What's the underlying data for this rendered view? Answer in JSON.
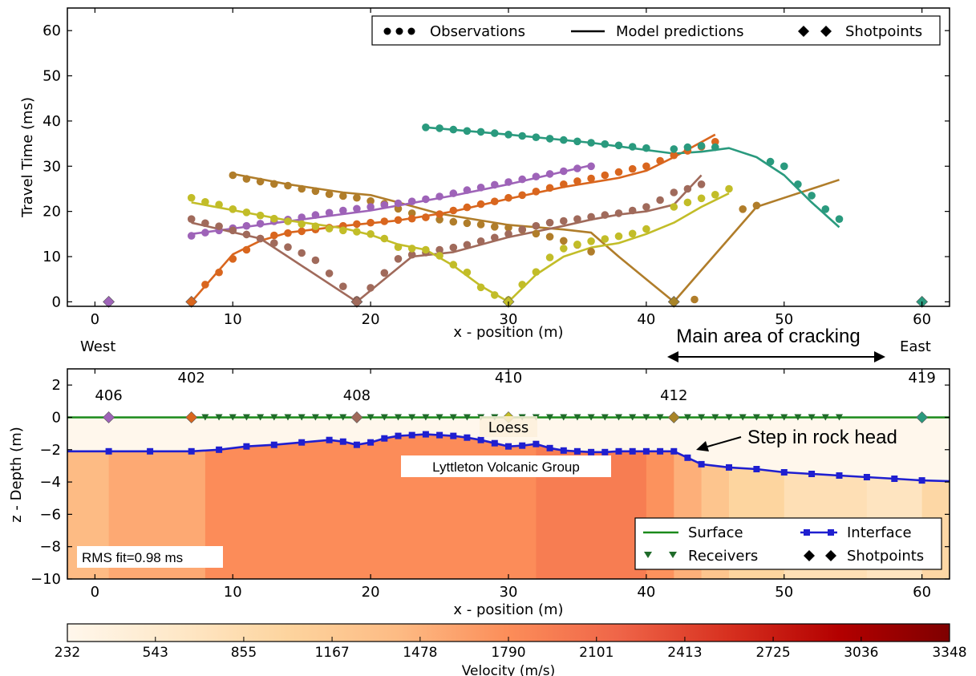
{
  "chart_data": [
    {
      "type": "line",
      "name": "travel-time-panel",
      "xlabel": "x - position (m)",
      "ylabel": "Travel Time (ms)",
      "xlim": [
        -2,
        62
      ],
      "ylim": [
        -1,
        65
      ],
      "xticks": [
        "0",
        "10",
        "20",
        "30",
        "40",
        "50",
        "60"
      ],
      "yticks": [
        "0",
        "10",
        "20",
        "30",
        "40",
        "50",
        "60"
      ],
      "legend": {
        "placement": "top-right",
        "entries": [
          "Observations",
          "Model predictions",
          "Shotpoints"
        ]
      },
      "shotpoints": [
        {
          "x": 1,
          "y": 0,
          "color": "#9e63b8"
        },
        {
          "x": 7,
          "y": 0,
          "color": "#d9661e"
        },
        {
          "x": 19,
          "y": 0,
          "color": "#a06a5b"
        },
        {
          "x": 30,
          "y": 0,
          "color": "#c2bd28"
        },
        {
          "x": 42,
          "y": 0,
          "color": "#a88428"
        },
        {
          "x": 60,
          "y": 0,
          "color": "#2a9a7e"
        }
      ],
      "series": [
        {
          "color": "#b07d2a",
          "observations": {
            "x": [
              10,
              11,
              12,
              13,
              14,
              15,
              16,
              17,
              18,
              19,
              20,
              21,
              22,
              23,
              24,
              25,
              26,
              27,
              28,
              29,
              30,
              31,
              32,
              33,
              34,
              35,
              36,
              37,
              38,
              39,
              40,
              41,
              42,
              43,
              44,
              45,
              46,
              47,
              48,
              49,
              50,
              51,
              52,
              53,
              54
            ],
            "y": [
              28,
              27.2,
              26.6,
              26.1,
              25.7,
              25,
              24.5,
              23.8,
              23.4,
              23,
              22.3,
              21.7,
              20.6,
              19.6,
              18.7,
              18.2,
              17.7,
              17.4,
              17.1,
              16.6,
              16.4,
              15.9,
              15.1,
              14.4,
              13.5,
              12.6,
              11.1,
              null,
              null,
              null,
              null,
              null,
              null,
              null,
              null,
              null,
              null,
              null,
              null,
              null,
              null,
              null,
              null,
              null,
              null
            ]
          },
          "obs_extra": {
            "x": [
              43.5,
              47,
              48,
              51,
              52,
              53,
              54
            ],
            "y": [
              0.5,
              20.5,
              21.3,
              null,
              null,
              null,
              null
            ]
          },
          "model": {
            "x": [
              10,
              14,
              18,
              20,
              22,
              25,
              30,
              34,
              36,
              38,
              40,
              42,
              44,
              46,
              48,
              50,
              52,
              54
            ],
            "y": [
              28.3,
              26,
              24.2,
              23.6,
              22,
              19.5,
              17,
              16,
              15.3,
              10,
              5,
              0,
              7,
              14,
              21,
              23,
              25,
              27
            ]
          }
        },
        {
          "color": "#d9661e",
          "observations": {
            "x": [
              7,
              8,
              9,
              10,
              11,
              12,
              13,
              14,
              15,
              16,
              17,
              18,
              19,
              20,
              21,
              22,
              23,
              24,
              25,
              26,
              27,
              28,
              29,
              30,
              31,
              32,
              33,
              34,
              35,
              36,
              37,
              38,
              39,
              40,
              41,
              42,
              43,
              44,
              45
            ],
            "y": [
              0,
              3.8,
              6.5,
              9.5,
              11.5,
              14,
              14.7,
              15.2,
              15.6,
              16,
              16.4,
              16.8,
              17.2,
              17.5,
              17.8,
              18.1,
              18.4,
              18.7,
              19.4,
              20.2,
              20.9,
              21.6,
              22.2,
              23,
              23.6,
              24.4,
              25.2,
              26,
              26.7,
              27.3,
              28,
              28.7,
              29.4,
              30,
              31.2,
              32.4,
              33.4,
              34.3,
              35.4
            ]
          },
          "model": {
            "x": [
              7,
              10,
              12,
              14,
              18,
              22,
              26,
              30,
              34,
              38,
              40,
              42,
              45
            ],
            "y": [
              0,
              10.5,
              13.5,
              15.3,
              16.8,
              18,
              20,
              22.8,
              25.4,
              27.4,
              29,
              32,
              37
            ]
          }
        },
        {
          "color": "#9e63b8",
          "observations": {
            "x": [
              7,
              8,
              9,
              10,
              11,
              12,
              13,
              14,
              15,
              16,
              17,
              18,
              19,
              20,
              21,
              22,
              23,
              24,
              25,
              26,
              27,
              28,
              29,
              30,
              31,
              32,
              33,
              34,
              35,
              36
            ],
            "y": [
              14.6,
              15.3,
              15.8,
              16.3,
              16.8,
              17.3,
              17.8,
              18.2,
              18.7,
              19.2,
              19.7,
              20.2,
              20.6,
              21,
              21.4,
              21.8,
              22.2,
              22.7,
              23.3,
              24,
              24.7,
              25.3,
              25.9,
              26.5,
              27.1,
              27.7,
              28.3,
              28.9,
              29.5,
              30
            ]
          },
          "model": {
            "x": [
              7,
              12,
              20,
              26,
              30,
              36
            ],
            "y": [
              15,
              17,
              20.2,
              23.5,
              26,
              30.2
            ]
          }
        },
        {
          "color": "#a06a5b",
          "observations": {
            "x": [
              7,
              8,
              9,
              10,
              11,
              12,
              13,
              14,
              15,
              16,
              17,
              18,
              19,
              20,
              21,
              22,
              23,
              24,
              25,
              26,
              27,
              28,
              29,
              30,
              31,
              32,
              33,
              34,
              35,
              36,
              37,
              38,
              39,
              40,
              41,
              42,
              43,
              44
            ],
            "y": [
              18.3,
              17.4,
              16.7,
              15.8,
              14.9,
              14,
              13,
              12.1,
              10.8,
              9.2,
              6.3,
              3.4,
              0.4,
              3.1,
              6.4,
              9.5,
              10.4,
              10.9,
              11.5,
              12,
              12.6,
              13.4,
              14.2,
              15,
              16,
              16.8,
              17.5,
              17.9,
              18.3,
              18.8,
              19.2,
              19.6,
              20.2,
              21,
              22.5,
              24.2,
              25,
              26
            ]
          },
          "model": {
            "x": [
              7,
              12,
              19,
              23,
              26,
              30,
              34,
              36,
              38,
              40,
              42,
              44
            ],
            "y": [
              17.5,
              14,
              0,
              10,
              11,
              14.3,
              16.8,
              18.2,
              19.3,
              20,
              21.5,
              28
            ]
          }
        },
        {
          "color": "#c2bd28",
          "observations": {
            "x": [
              7,
              8,
              9,
              10,
              11,
              12,
              13,
              14,
              15,
              16,
              17,
              18,
              19,
              20,
              21,
              22,
              23,
              24,
              25,
              26,
              27,
              28,
              29,
              30,
              31,
              32,
              33,
              34,
              35,
              36,
              37,
              38,
              39,
              40,
              41,
              42,
              43,
              44,
              45,
              46
            ],
            "y": [
              23,
              22.1,
              21.5,
              20.5,
              19.8,
              19.1,
              18.4,
              17.8,
              17.2,
              16.7,
              16.2,
              15.8,
              15.5,
              15,
              14,
              12.1,
              11.8,
              11.5,
              10.2,
              8.2,
              6.5,
              3.2,
              1.5,
              0.4,
              3.8,
              6.6,
              9.8,
              11.8,
              12.7,
              13.4,
              13.9,
              14.5,
              15.1,
              16.1,
              null,
              21,
              22,
              22.9,
              23.7,
              25
            ]
          },
          "model": {
            "x": [
              7,
              14,
              18,
              20,
              22,
              24,
              26,
              28,
              30,
              32,
              34,
              36,
              38,
              40,
              42,
              44,
              46
            ],
            "y": [
              22,
              18,
              16.3,
              14.8,
              12.7,
              11.5,
              8,
              3.5,
              0,
              6,
              10,
              12,
              13,
              15,
              17.5,
              21,
              24
            ]
          }
        },
        {
          "color": "#2a9a7e",
          "observations": {
            "x": [
              24,
              25,
              26,
              27,
              28,
              29,
              30,
              31,
              32,
              33,
              34,
              35,
              36,
              37,
              38,
              39,
              40,
              41,
              42,
              43,
              44,
              45,
              46,
              47,
              48,
              49,
              50,
              51,
              52,
              53,
              54
            ],
            "y": [
              38.6,
              38.4,
              38.1,
              37.8,
              37.6,
              37.3,
              37,
              36.7,
              36.4,
              36.1,
              35.8,
              35.5,
              35.2,
              34.9,
              34.6,
              34.3,
              34,
              null,
              33.8,
              34.2,
              34.5,
              34.2,
              null,
              null,
              null,
              31,
              30,
              26,
              23.5,
              20.5,
              18.3
            ]
          },
          "model": {
            "x": [
              24,
              30,
              36,
              42,
              44,
              46,
              48,
              50,
              52,
              54
            ],
            "y": [
              38.6,
              37,
              35.2,
              32.8,
              33.2,
              34,
              32,
              28,
              22,
              16.5
            ]
          }
        }
      ]
    },
    {
      "type": "area",
      "name": "velocity-depth-panel",
      "xlabel": "x - position (m)",
      "ylabel": "z - Depth (m)",
      "xlim": [
        -2,
        62
      ],
      "ylim": [
        -10,
        3
      ],
      "xticks": [
        "0",
        "10",
        "20",
        "30",
        "40",
        "50",
        "60"
      ],
      "yticks": [
        "2",
        "0",
        "−2",
        "−4",
        "−6",
        "−8",
        "−10"
      ],
      "legend": {
        "placement": "lower-right",
        "entries": [
          "Surface",
          "Interface",
          "Receivers",
          "Shotpoints"
        ]
      },
      "surface_depth": 0,
      "interface": {
        "x": [
          -2,
          1,
          4,
          7,
          9,
          11,
          13,
          15,
          17,
          18,
          19,
          20,
          21,
          22,
          23,
          24,
          25,
          26,
          27,
          28,
          29,
          30,
          31,
          32,
          33,
          34,
          35,
          36,
          37,
          38,
          39,
          40,
          41,
          42,
          43,
          44,
          46,
          48,
          50,
          52,
          54,
          56,
          58,
          60,
          62
        ],
        "y": [
          -2.1,
          -2.1,
          -2.1,
          -2.1,
          -2,
          -1.8,
          -1.7,
          -1.55,
          -1.4,
          -1.5,
          -1.7,
          -1.55,
          -1.3,
          -1.15,
          -1.1,
          -1.05,
          -1.1,
          -1.15,
          -1.25,
          -1.4,
          -1.6,
          -1.8,
          -1.75,
          -1.65,
          -1.9,
          -2.05,
          -2.1,
          -2.15,
          -2.15,
          -2.1,
          -2.1,
          -2.1,
          -2.1,
          -2.1,
          -2.5,
          -2.9,
          -3.1,
          -3.2,
          -3.4,
          -3.5,
          -3.6,
          -3.7,
          -3.8,
          -3.9,
          -3.95
        ]
      },
      "receivers_x": [
        8,
        9,
        10,
        11,
        12,
        13,
        14,
        15,
        16,
        17,
        18,
        20,
        21,
        22,
        23,
        24,
        25,
        26,
        27,
        28,
        29,
        31,
        32,
        33,
        34,
        35,
        36,
        37,
        38,
        39,
        40,
        41,
        43,
        44,
        45,
        46,
        47,
        48,
        49,
        50,
        51,
        52,
        53,
        54
      ],
      "shotpoints": [
        {
          "x": 1,
          "label": "406",
          "color": "#9e63b8"
        },
        {
          "x": 7,
          "label": "402",
          "color": "#d9661e"
        },
        {
          "x": 19,
          "label": "408",
          "color": "#a06a5b"
        },
        {
          "x": 30,
          "label": "410",
          "color": "#c2bd28"
        },
        {
          "x": 42,
          "label": "412",
          "color": "#a88428"
        },
        {
          "x": 60,
          "label": "419",
          "color": "#2a9a7e"
        }
      ],
      "velocity_columns": [
        {
          "x0": -2,
          "x1": 1,
          "v_upper": 232,
          "v_lower": 1400
        },
        {
          "x0": 1,
          "x1": 8,
          "v_upper": 232,
          "v_lower": 1550
        },
        {
          "x0": 8,
          "x1": 32,
          "v_upper": 232,
          "v_lower": 1800
        },
        {
          "x0": 32,
          "x1": 40,
          "v_upper": 232,
          "v_lower": 1950
        },
        {
          "x0": 40,
          "x1": 42,
          "v_upper": 232,
          "v_lower": 1750
        },
        {
          "x0": 42,
          "x1": 44,
          "v_upper": 232,
          "v_lower": 1500
        },
        {
          "x0": 44,
          "x1": 46,
          "v_upper": 232,
          "v_lower": 1250
        },
        {
          "x0": 46,
          "x1": 50,
          "v_upper": 232,
          "v_lower": 1000
        },
        {
          "x0": 50,
          "x1": 56,
          "v_upper": 232,
          "v_lower": 800
        },
        {
          "x0": 56,
          "x1": 60,
          "v_upper": 232,
          "v_lower": 700
        },
        {
          "x0": 60,
          "x1": 62,
          "v_upper": 232,
          "v_lower": 950
        }
      ],
      "annotations": {
        "west": "West",
        "east": "East",
        "cracking": "Main area of cracking",
        "step": "Step in rock head",
        "loess": "Loess",
        "lyttleton": "Lyttleton Volcanic Group",
        "rms": "RMS fit=0.98 ms"
      }
    },
    {
      "type": "heatmap",
      "name": "velocity-colorbar",
      "xlabel": "Velocity (m/s)",
      "ticks": [
        "232",
        "543",
        "855",
        "1167",
        "1478",
        "1790",
        "2101",
        "2413",
        "2725",
        "3036",
        "3348"
      ],
      "vmin": 232,
      "vmax": 3348,
      "colormap": [
        "#fff7ec",
        "#fee8c8",
        "#fdd49e",
        "#fdbb84",
        "#fc8d59",
        "#ef6548",
        "#d7301f",
        "#b30000",
        "#7f0000"
      ]
    }
  ]
}
